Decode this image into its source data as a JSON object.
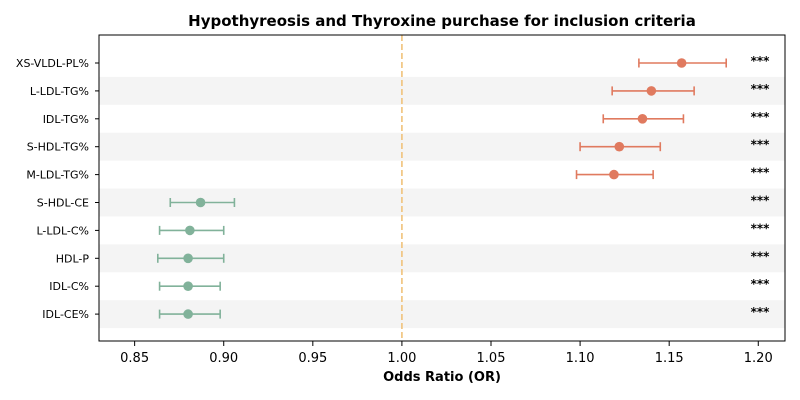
{
  "chart_data": {
    "type": "forest",
    "title": "Hypothyreosis and Thyroxine purchase for inclusion criteria",
    "xlabel": "Odds Ratio (OR)",
    "xlim": [
      0.83,
      1.215
    ],
    "xticks": [
      "0.85",
      "0.90",
      "0.95",
      "1.00",
      "1.05",
      "1.10",
      "1.15",
      "1.20"
    ],
    "xtick_values": [
      0.85,
      0.9,
      0.95,
      1.0,
      1.05,
      1.1,
      1.15,
      1.2
    ],
    "reference_line": 1.0,
    "reference_color": "#f0c27a",
    "up_color": "#e07a5f",
    "down_color": "#81b29a",
    "stripe_color": "#f4f4f4",
    "rows": [
      {
        "label": "XS-VLDL-PL%",
        "or": 1.157,
        "lo": 1.133,
        "hi": 1.182,
        "sig": "***"
      },
      {
        "label": "L-LDL-TG%",
        "or": 1.14,
        "lo": 1.118,
        "hi": 1.164,
        "sig": "***"
      },
      {
        "label": "IDL-TG%",
        "or": 1.135,
        "lo": 1.113,
        "hi": 1.158,
        "sig": "***"
      },
      {
        "label": "S-HDL-TG%",
        "or": 1.122,
        "lo": 1.1,
        "hi": 1.145,
        "sig": "***"
      },
      {
        "label": "M-LDL-TG%",
        "or": 1.119,
        "lo": 1.098,
        "hi": 1.141,
        "sig": "***"
      },
      {
        "label": "S-HDL-CE",
        "or": 0.887,
        "lo": 0.87,
        "hi": 0.906,
        "sig": "***"
      },
      {
        "label": "L-LDL-C%",
        "or": 0.881,
        "lo": 0.864,
        "hi": 0.9,
        "sig": "***"
      },
      {
        "label": "HDL-P",
        "or": 0.88,
        "lo": 0.863,
        "hi": 0.9,
        "sig": "***"
      },
      {
        "label": "IDL-C%",
        "or": 0.88,
        "lo": 0.864,
        "hi": 0.898,
        "sig": "***"
      },
      {
        "label": "IDL-CE%",
        "or": 0.88,
        "lo": 0.864,
        "hi": 0.898,
        "sig": "***"
      }
    ]
  }
}
